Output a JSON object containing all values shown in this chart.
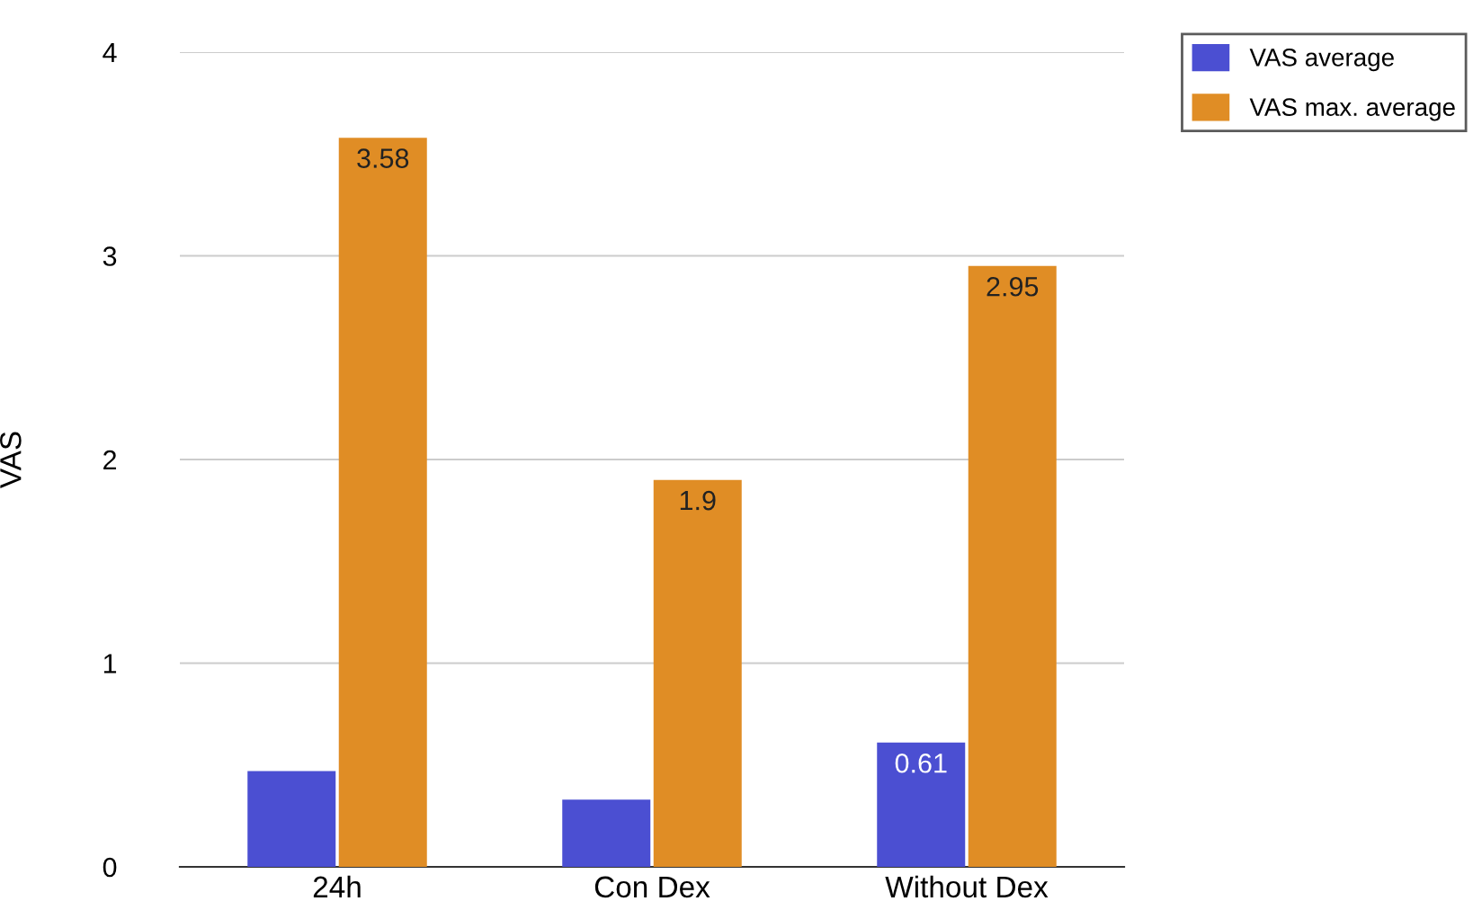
{
  "chart_data": {
    "type": "bar",
    "ylabel": "VAS",
    "categories": [
      "24h",
      "Con Dex",
      "Without Dex"
    ],
    "series": [
      {
        "name": "VAS average",
        "color": "#4b4fd2",
        "values": [
          0.47,
          0.33,
          0.61
        ],
        "value_labels": [
          null,
          null,
          "0.61"
        ]
      },
      {
        "name": "VAS max. average",
        "color": "#e08d25",
        "values": [
          3.58,
          1.9,
          2.95
        ],
        "value_labels": [
          "3.58",
          "1.9",
          "2.95"
        ]
      }
    ],
    "ylim": [
      0,
      4
    ],
    "yticks": [
      0,
      1,
      2,
      3,
      4
    ],
    "grid": "y",
    "legend": "top right"
  }
}
